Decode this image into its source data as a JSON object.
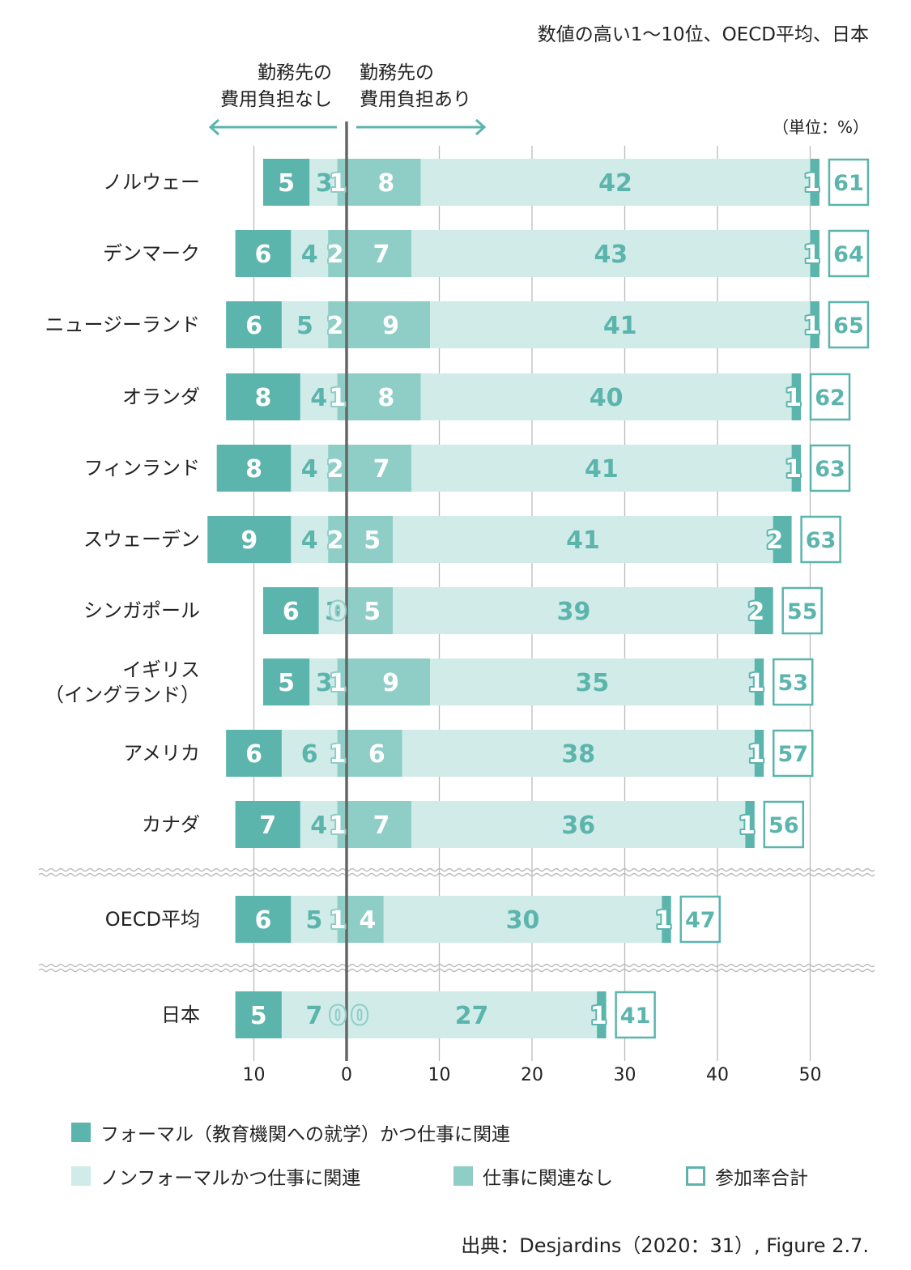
{
  "chart_data": {
    "type": "bar",
    "subtype": "diverging-stacked-horizontal",
    "subtitle": "数値の高い1〜10位、OECD平均、日本",
    "unit": "（単位：%）",
    "left_header": [
      "勤務先の",
      "費用負担なし"
    ],
    "right_header": [
      "勤務先の",
      "費用負担あり"
    ],
    "xlim": [
      -12,
      55
    ],
    "x_ticks": [
      -10,
      0,
      10,
      20,
      30,
      40,
      50
    ],
    "x_tick_labels": [
      "10",
      "0",
      "10",
      "20",
      "30",
      "40",
      "50"
    ],
    "grid": true,
    "categories": [
      "ノルウェー",
      "デンマーク",
      "ニュージーランド",
      "オランダ",
      "フィンランド",
      "スウェーデン",
      "シンガポール",
      "イギリス（イングランド）",
      "アメリカ",
      "カナダ",
      "OECD平均",
      "日本"
    ],
    "category_lines": [
      [
        "ノルウェー"
      ],
      [
        "デンマーク"
      ],
      [
        "ニュージーランド"
      ],
      [
        "オランダ"
      ],
      [
        "フィンランド"
      ],
      [
        "スウェーデン"
      ],
      [
        "シンガポール"
      ],
      [
        "イギリス",
        "（イングランド）"
      ],
      [
        "アメリカ"
      ],
      [
        "カナダ"
      ],
      [
        "OECD平均"
      ],
      [
        "日本"
      ]
    ],
    "breaks_after": [
      9,
      10
    ],
    "series": [
      {
        "name": "フォーマル（教育機関への就学）かつ仕事に関連",
        "side": "no_employer_cost",
        "values": [
          5,
          6,
          6,
          8,
          8,
          9,
          6,
          5,
          6,
          7,
          6,
          5
        ]
      },
      {
        "name": "ノンフォーマルかつ仕事に関連",
        "side": "no_employer_cost",
        "values": [
          3,
          4,
          5,
          4,
          4,
          4,
          3,
          3,
          6,
          4,
          5,
          7
        ]
      },
      {
        "name": "仕事に関連なし",
        "side": "no_employer_cost",
        "values": [
          1,
          2,
          2,
          1,
          2,
          2,
          0,
          1,
          1,
          1,
          1,
          0
        ]
      },
      {
        "name": "仕事に関連なし",
        "side": "employer_cost",
        "values": [
          8,
          7,
          9,
          8,
          7,
          5,
          5,
          9,
          6,
          7,
          4,
          0
        ]
      },
      {
        "name": "ノンフォーマルかつ仕事に関連",
        "side": "employer_cost",
        "values": [
          42,
          43,
          41,
          40,
          41,
          41,
          39,
          35,
          38,
          36,
          30,
          27
        ]
      },
      {
        "name": "フォーマル（教育機関への就学）かつ仕事に関連",
        "side": "employer_cost",
        "values": [
          1,
          1,
          1,
          1,
          1,
          2,
          2,
          1,
          1,
          1,
          1,
          1
        ]
      }
    ],
    "totals": [
      61,
      64,
      65,
      62,
      63,
      63,
      55,
      53,
      57,
      56,
      47,
      41
    ],
    "legend": [
      {
        "label": "フォーマル（教育機関への就学）かつ仕事に関連",
        "color": "#5bb5ad",
        "style": "fill"
      },
      {
        "label": "ノンフォーマルかつ仕事に関連",
        "color": "#d0ebe8",
        "style": "fill"
      },
      {
        "label": "仕事に関連なし",
        "color": "#8fcdc7",
        "style": "fill"
      },
      {
        "label": "参加率合計",
        "color": "#5bb5ad",
        "style": "outline"
      }
    ],
    "legend_position": "bottom",
    "colors": {
      "formal": "#5bb5ad",
      "nonformal": "#d0ebe8",
      "unrelated": "#8fcdc7",
      "total_box": "#5bb5ad",
      "zero_line": "#666666",
      "grid": "#bbbbbb",
      "arrow": "#5bb5ad"
    },
    "source": "出典：Desjardins（2020：31）, Figure 2.7."
  }
}
